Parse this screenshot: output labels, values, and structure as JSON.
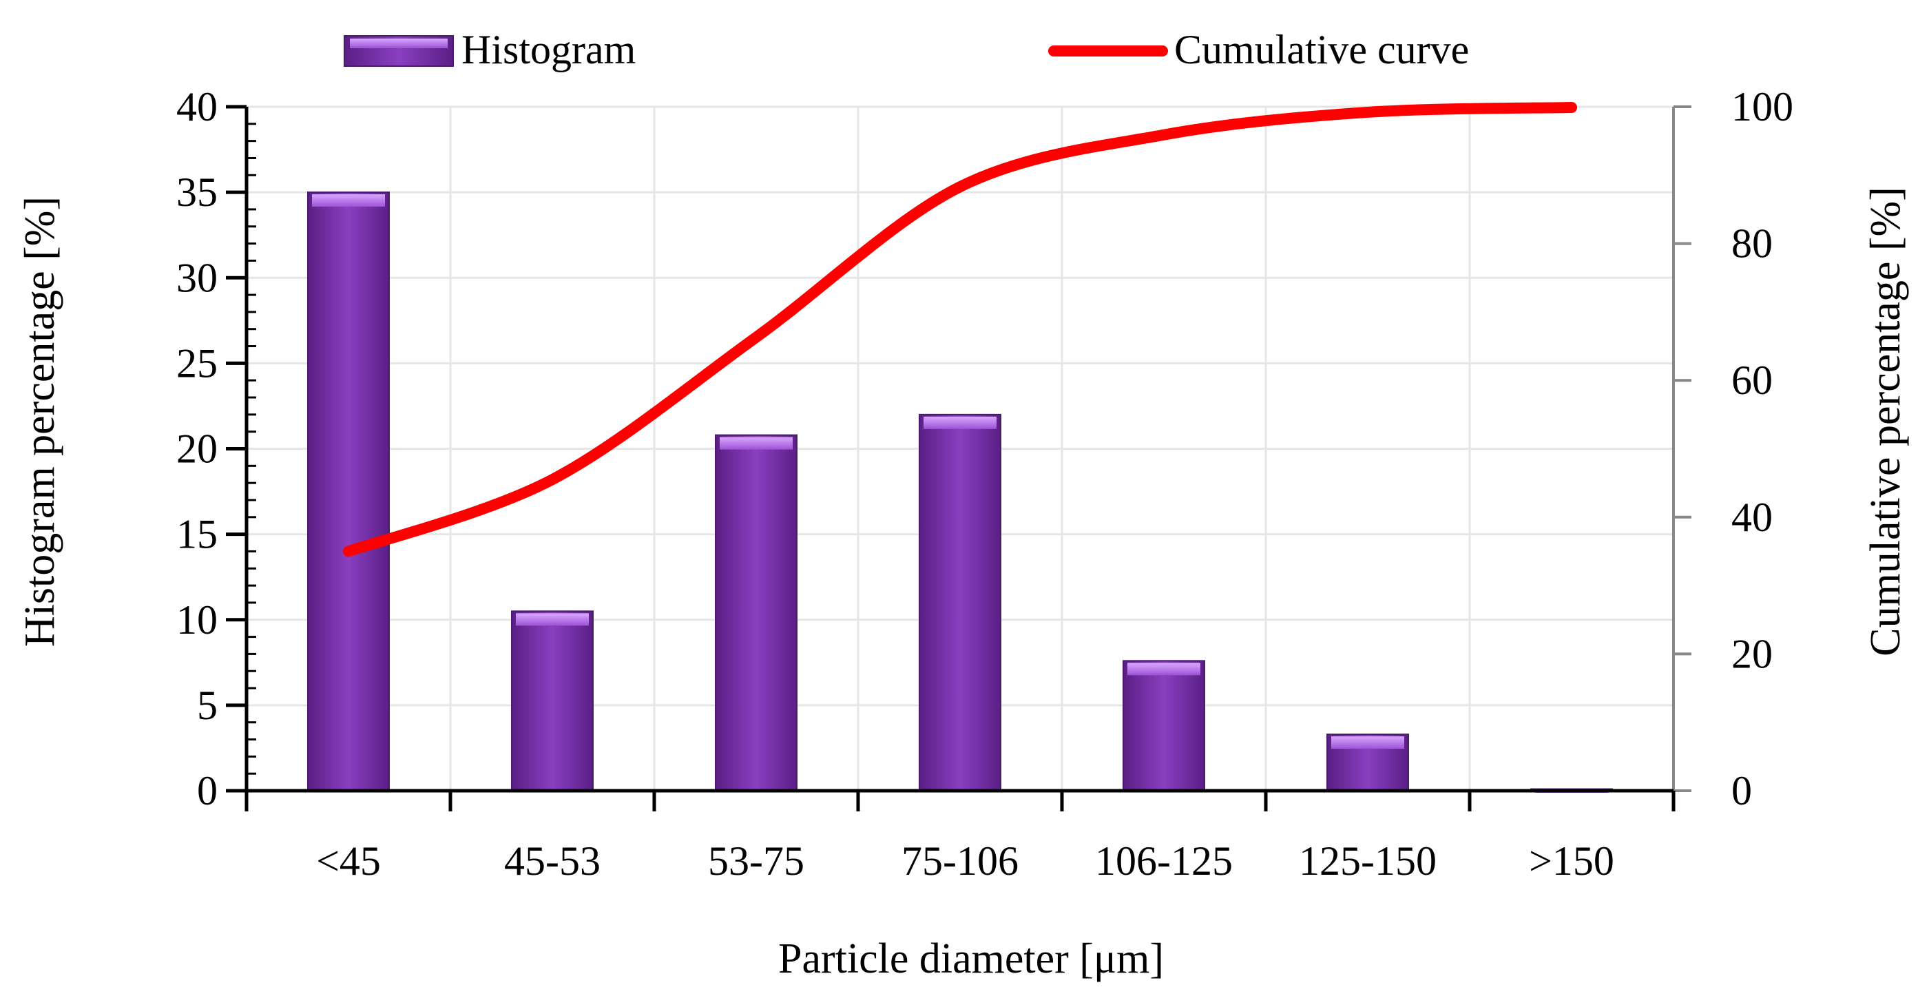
{
  "chart_data": {
    "type": "bar+line",
    "categories": [
      "<45",
      "45-53",
      "53-75",
      "75-106",
      "106-125",
      "125-150",
      ">150"
    ],
    "series": [
      {
        "name": "Histogram",
        "type": "bar",
        "axis": "left",
        "values": [
          35.0,
          10.5,
          20.8,
          22.0,
          7.6,
          3.3,
          0.1
        ],
        "color": "#7a34a8"
      },
      {
        "name": "Cumulative curve",
        "type": "line",
        "axis": "right",
        "values": [
          35.0,
          45.5,
          66.3,
          88.3,
          95.9,
          99.2,
          99.9
        ],
        "color": "#ff0000"
      }
    ],
    "xlabel": "Particle diameter [μm]",
    "ylabel_left": "Histogram percentage [%]",
    "ylabel_right": "Cumulative percentage [%]",
    "ylim_left": [
      0,
      40
    ],
    "ylim_right": [
      0,
      100
    ],
    "yticks_left": [
      "0",
      "5",
      "10",
      "15",
      "20",
      "25",
      "30",
      "35",
      "40"
    ],
    "yticks_right": [
      "0",
      "20",
      "40",
      "60",
      "80",
      "100"
    ],
    "grid": true,
    "legend_position": "top"
  }
}
